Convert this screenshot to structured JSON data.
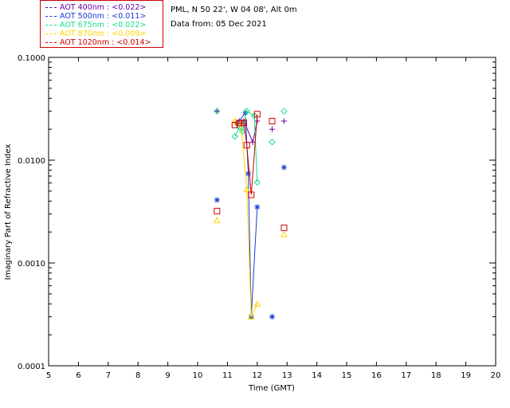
{
  "info": {
    "station": "PML, N 50 22', W 04 08', Alt 0m",
    "date_line": "Data from: 05 Dec 2021"
  },
  "legend": [
    {
      "label": "AOT  400nm : <0.022>",
      "color": "#6a00a8"
    },
    {
      "label": "AOT  500nm : <0.011>",
      "color": "#1a3ad6"
    },
    {
      "label": "AOT  675nm : <0.022>",
      "color": "#16e08a"
    },
    {
      "label": "AOT  870nm : <0.009>",
      "color": "#ffd400"
    },
    {
      "label": "AOT 1020nm : <0.014>",
      "color": "#d00000"
    }
  ],
  "chart_data": {
    "type": "scatter",
    "xlabel": "Time (GMT)",
    "ylabel": "Imaginary Part of Refractive Index",
    "xlim": [
      5,
      20
    ],
    "ylim": [
      0.0001,
      0.1
    ],
    "yscale": "log",
    "xticks": [
      5,
      6,
      7,
      8,
      9,
      10,
      11,
      12,
      13,
      14,
      15,
      16,
      17,
      18,
      19,
      20
    ],
    "yticks": [
      {
        "value": 0.0001,
        "label": "0.0001"
      },
      {
        "value": 0.001,
        "label": "0.0010"
      },
      {
        "value": 0.01,
        "label": "0.0100"
      },
      {
        "value": 0.1,
        "label": "0.1000"
      }
    ],
    "series": [
      {
        "name": "AOT  400nm : <0.022>",
        "marker": "plus",
        "points": [
          [
            10.65,
            0.03
          ],
          [
            11.3,
            0.023
          ],
          [
            11.4,
            0.024
          ],
          [
            11.55,
            0.024
          ],
          [
            11.85,
            0.015
          ],
          [
            12.0,
            0.024
          ],
          [
            12.5,
            0.02
          ],
          [
            12.9,
            0.024
          ]
        ],
        "line": [
          [
            11.3,
            0.023
          ],
          [
            11.4,
            0.024
          ],
          [
            11.55,
            0.024
          ],
          [
            11.85,
            0.015
          ],
          [
            12.0,
            0.024
          ]
        ]
      },
      {
        "name": "AOT  500nm : <0.011>",
        "marker": "asterisk",
        "points": [
          [
            10.65,
            0.0041
          ],
          [
            11.35,
            0.023
          ],
          [
            11.6,
            0.029
          ],
          [
            11.7,
            0.0074
          ],
          [
            11.8,
            0.0003
          ],
          [
            12.0,
            0.0035
          ],
          [
            12.5,
            0.0003
          ],
          [
            12.9,
            0.0085
          ]
        ],
        "line": [
          [
            11.35,
            0.023
          ],
          [
            11.6,
            0.029
          ],
          [
            11.7,
            0.0074
          ],
          [
            11.8,
            0.0003
          ],
          [
            12.0,
            0.0035
          ]
        ]
      },
      {
        "name": "AOT  675nm : <0.022>",
        "marker": "diamond",
        "points": [
          [
            10.65,
            0.03
          ],
          [
            11.25,
            0.017
          ],
          [
            11.4,
            0.021
          ],
          [
            11.5,
            0.019
          ],
          [
            11.65,
            0.03
          ],
          [
            11.9,
            0.027
          ],
          [
            12.0,
            0.0061
          ],
          [
            12.5,
            0.015
          ],
          [
            12.9,
            0.03
          ]
        ],
        "line": [
          [
            11.25,
            0.017
          ],
          [
            11.4,
            0.021
          ],
          [
            11.5,
            0.019
          ],
          [
            11.65,
            0.03
          ],
          [
            11.9,
            0.027
          ],
          [
            12.0,
            0.0061
          ]
        ]
      },
      {
        "name": "AOT  870nm : <0.009>",
        "marker": "triangle",
        "points": [
          [
            10.65,
            0.0026
          ],
          [
            11.25,
            0.024
          ],
          [
            11.45,
            0.023
          ],
          [
            11.65,
            0.0052
          ],
          [
            11.8,
            0.0003
          ],
          [
            12.0,
            0.0004
          ],
          [
            12.9,
            0.0019
          ]
        ],
        "line": [
          [
            11.25,
            0.024
          ],
          [
            11.45,
            0.023
          ],
          [
            11.65,
            0.0052
          ],
          [
            11.8,
            0.0003
          ],
          [
            12.0,
            0.0004
          ]
        ]
      },
      {
        "name": "AOT 1020nm : <0.014>",
        "marker": "square",
        "points": [
          [
            10.65,
            0.0032
          ],
          [
            11.25,
            0.022
          ],
          [
            11.4,
            0.023
          ],
          [
            11.55,
            0.023
          ],
          [
            11.65,
            0.014
          ],
          [
            11.8,
            0.0046
          ],
          [
            12.0,
            0.028
          ],
          [
            12.5,
            0.024
          ],
          [
            12.9,
            0.0022
          ]
        ],
        "line": [
          [
            11.25,
            0.022
          ],
          [
            11.4,
            0.023
          ],
          [
            11.55,
            0.023
          ],
          [
            11.65,
            0.014
          ],
          [
            11.8,
            0.0046
          ],
          [
            12.0,
            0.028
          ]
        ]
      }
    ]
  }
}
